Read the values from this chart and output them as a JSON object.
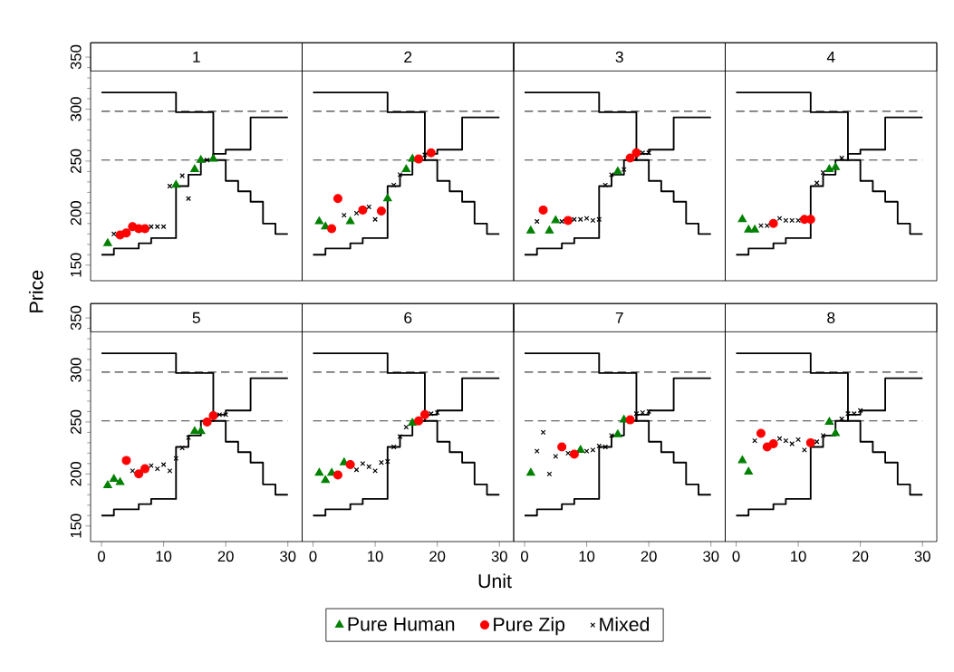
{
  "chart_data": [
    {
      "type": "scatter",
      "title": "1",
      "ylabel": "Price",
      "xlim": [
        -1.75,
        32.3
      ],
      "ylim": [
        135,
        364
      ],
      "yticks": [
        150,
        200,
        250,
        300,
        350
      ],
      "tick_labels": "y",
      "ref_lines": [
        {
          "axis": "y",
          "value": 298,
          "line_style": "dashed",
          "color": "#404040"
        },
        {
          "axis": "y",
          "value": 251,
          "line_style": "dashed",
          "color": "#404040"
        }
      ],
      "series": [
        {
          "type": "step",
          "color": "#000000",
          "x": [
            0,
            2,
            6,
            8,
            12,
            14,
            16,
            18,
            20,
            24,
            30
          ],
          "values": [
            160,
            166,
            171,
            176,
            226,
            237,
            251,
            257,
            261,
            292,
            292
          ]
        },
        {
          "type": "step",
          "color": "#000000",
          "x": [
            0,
            12,
            18,
            20,
            22,
            24,
            26,
            28,
            30
          ],
          "values": [
            316,
            297,
            251,
            231,
            221,
            211,
            190,
            180,
            180
          ]
        },
        {
          "marker": "triangle",
          "color": "#008000",
          "x": [
            1,
            12,
            15,
            16,
            18
          ],
          "values": [
            171,
            227,
            242,
            251,
            252
          ]
        },
        {
          "marker": "circle",
          "color": "#ff0000",
          "x": [
            3,
            4,
            5,
            6,
            7
          ],
          "values": [
            179,
            181,
            187,
            185,
            185
          ]
        },
        {
          "marker": "cross",
          "color": "#000000",
          "x": [
            2,
            8,
            9,
            10,
            11,
            13,
            14,
            17
          ],
          "values": [
            180,
            187,
            187,
            187,
            226,
            236,
            214,
            251
          ]
        }
      ]
    },
    {
      "type": "scatter",
      "title": "2",
      "xlim": [
        -1.75,
        32.3
      ],
      "ylim": [
        135,
        364
      ],
      "tick_labels": false,
      "ref_lines": [
        {
          "axis": "y",
          "value": 298,
          "line_style": "dashed",
          "color": "#404040"
        },
        {
          "axis": "y",
          "value": 251,
          "line_style": "dashed",
          "color": "#404040"
        }
      ],
      "series": [
        {
          "type": "step",
          "color": "#000000",
          "x": [
            0,
            2,
            6,
            8,
            12,
            14,
            16,
            18,
            20,
            24,
            30
          ],
          "values": [
            160,
            166,
            171,
            176,
            226,
            237,
            251,
            257,
            261,
            292,
            292
          ]
        },
        {
          "type": "step",
          "color": "#000000",
          "x": [
            0,
            12,
            18,
            20,
            22,
            24,
            26,
            28,
            30
          ],
          "values": [
            316,
            297,
            251,
            231,
            221,
            211,
            190,
            180,
            180
          ]
        },
        {
          "marker": "triangle",
          "color": "#008000",
          "x": [
            1,
            2,
            6,
            12,
            15,
            16
          ],
          "values": [
            192,
            187,
            192,
            214,
            242,
            252
          ]
        },
        {
          "marker": "circle",
          "color": "#ff0000",
          "x": [
            3,
            4,
            8,
            11,
            17,
            19
          ],
          "values": [
            185,
            214,
            203,
            202,
            252,
            258
          ]
        },
        {
          "marker": "cross",
          "color": "#000000",
          "x": [
            5,
            7,
            9,
            10,
            13,
            14,
            18
          ],
          "values": [
            198,
            200,
            206,
            194,
            227,
            237,
            256
          ]
        }
      ]
    },
    {
      "type": "scatter",
      "title": "3",
      "xlim": [
        -1.75,
        32.3
      ],
      "ylim": [
        135,
        364
      ],
      "tick_labels": false,
      "ref_lines": [
        {
          "axis": "y",
          "value": 298,
          "line_style": "dashed",
          "color": "#404040"
        },
        {
          "axis": "y",
          "value": 251,
          "line_style": "dashed",
          "color": "#404040"
        }
      ],
      "series": [
        {
          "type": "step",
          "color": "#000000",
          "x": [
            0,
            2,
            6,
            8,
            12,
            14,
            16,
            18,
            20,
            24,
            30
          ],
          "values": [
            160,
            166,
            171,
            176,
            226,
            237,
            251,
            257,
            261,
            292,
            292
          ]
        },
        {
          "type": "step",
          "color": "#000000",
          "x": [
            0,
            12,
            18,
            20,
            22,
            24,
            26,
            28,
            30
          ],
          "values": [
            316,
            297,
            251,
            231,
            221,
            211,
            190,
            180,
            180
          ]
        },
        {
          "marker": "triangle",
          "color": "#008000",
          "x": [
            1,
            4,
            5,
            15
          ],
          "values": [
            183,
            183,
            193,
            240
          ]
        },
        {
          "marker": "circle",
          "color": "#ff0000",
          "x": [
            3,
            7,
            17,
            18
          ],
          "values": [
            203,
            193,
            253,
            258
          ]
        },
        {
          "marker": "cross",
          "color": "#000000",
          "x": [
            2,
            6,
            8,
            9,
            10,
            11,
            12,
            13,
            14,
            16,
            19,
            20
          ],
          "values": [
            192,
            192,
            194,
            194,
            195,
            193,
            194,
            227,
            237,
            242,
            258,
            258
          ]
        }
      ]
    },
    {
      "type": "scatter",
      "title": "4",
      "xlim": [
        -1.75,
        32.3
      ],
      "ylim": [
        135,
        364
      ],
      "tick_labels": false,
      "ref_lines": [
        {
          "axis": "y",
          "value": 298,
          "line_style": "dashed",
          "color": "#404040"
        },
        {
          "axis": "y",
          "value": 251,
          "line_style": "dashed",
          "color": "#404040"
        }
      ],
      "series": [
        {
          "type": "step",
          "color": "#000000",
          "x": [
            0,
            2,
            6,
            8,
            12,
            14,
            16,
            18,
            20,
            24,
            30
          ],
          "values": [
            160,
            166,
            171,
            176,
            226,
            237,
            251,
            257,
            261,
            292,
            292
          ]
        },
        {
          "type": "step",
          "color": "#000000",
          "x": [
            0,
            12,
            18,
            20,
            22,
            24,
            26,
            28,
            30
          ],
          "values": [
            316,
            297,
            251,
            231,
            221,
            211,
            190,
            180,
            180
          ]
        },
        {
          "marker": "triangle",
          "color": "#008000",
          "x": [
            1,
            2,
            3,
            15,
            16
          ],
          "values": [
            194,
            184,
            184,
            242,
            244
          ]
        },
        {
          "marker": "circle",
          "color": "#ff0000",
          "x": [
            6,
            11,
            12
          ],
          "values": [
            190,
            194,
            194
          ]
        },
        {
          "marker": "cross",
          "color": "#000000",
          "x": [
            4,
            5,
            7,
            8,
            9,
            10,
            13,
            14,
            17
          ],
          "values": [
            188,
            188,
            195,
            193,
            193,
            193,
            229,
            239,
            253
          ]
        }
      ]
    },
    {
      "type": "scatter",
      "title": "5",
      "xlim": [
        -1.75,
        32.3
      ],
      "ylim": [
        135,
        364
      ],
      "xticks": [
        0,
        10,
        20,
        30
      ],
      "yticks": [
        150,
        200,
        250,
        300,
        350
      ],
      "ref_lines": [
        {
          "axis": "y",
          "value": 298,
          "line_style": "dashed",
          "color": "#404040"
        },
        {
          "axis": "y",
          "value": 251,
          "line_style": "dashed",
          "color": "#404040"
        }
      ],
      "series": [
        {
          "type": "step",
          "color": "#000000",
          "x": [
            0,
            2,
            6,
            8,
            12,
            14,
            16,
            18,
            20,
            24,
            30
          ],
          "values": [
            160,
            166,
            171,
            176,
            226,
            237,
            251,
            257,
            261,
            292,
            292
          ]
        },
        {
          "type": "step",
          "color": "#000000",
          "x": [
            0,
            12,
            18,
            20,
            22,
            24,
            26,
            28,
            30
          ],
          "values": [
            316,
            297,
            251,
            231,
            221,
            211,
            190,
            180,
            180
          ]
        },
        {
          "marker": "triangle",
          "color": "#008000",
          "x": [
            1,
            2,
            3,
            15,
            16
          ],
          "values": [
            189,
            195,
            192,
            241,
            241
          ]
        },
        {
          "marker": "circle",
          "color": "#ff0000",
          "x": [
            4,
            6,
            7,
            17,
            18
          ],
          "values": [
            213,
            200,
            205,
            250,
            256
          ]
        },
        {
          "marker": "cross",
          "color": "#000000",
          "x": [
            5,
            8,
            9,
            10,
            11,
            12,
            13,
            14,
            19,
            20
          ],
          "values": [
            203,
            208,
            205,
            209,
            203,
            215,
            225,
            235,
            257,
            257
          ]
        }
      ]
    },
    {
      "type": "scatter",
      "title": "6",
      "xlabel": "Unit",
      "legend": "bottom",
      "xlim": [
        -1.75,
        32.3
      ],
      "ylim": [
        135,
        364
      ],
      "xticks": [
        0,
        10,
        20,
        30
      ],
      "tick_labels": "x",
      "ref_lines": [
        {
          "axis": "y",
          "value": 298,
          "line_style": "dashed",
          "color": "#404040"
        },
        {
          "axis": "y",
          "value": 251,
          "line_style": "dashed",
          "color": "#404040"
        }
      ],
      "series": [
        {
          "type": "step",
          "color": "#000000",
          "x": [
            0,
            2,
            6,
            8,
            12,
            14,
            16,
            18,
            20,
            24,
            30
          ],
          "values": [
            160,
            166,
            171,
            176,
            226,
            237,
            251,
            257,
            261,
            292,
            292
          ]
        },
        {
          "type": "step",
          "color": "#000000",
          "x": [
            0,
            12,
            18,
            20,
            22,
            24,
            26,
            28,
            30
          ],
          "values": [
            316,
            297,
            251,
            231,
            221,
            211,
            190,
            180,
            180
          ]
        },
        {
          "name": "Pure Human",
          "marker": "triangle",
          "color": "#008000",
          "x": [
            1,
            2,
            3,
            5,
            16
          ],
          "values": [
            201,
            194,
            201,
            211,
            249
          ]
        },
        {
          "name": "Pure Zip",
          "marker": "circle",
          "color": "#ff0000",
          "x": [
            4,
            6,
            17,
            18
          ],
          "values": [
            199,
            209,
            251,
            257
          ]
        },
        {
          "name": "Mixed",
          "marker": "cross",
          "color": "#000000",
          "x": [
            7,
            8,
            9,
            10,
            11,
            12,
            13,
            14,
            15,
            19,
            20
          ],
          "values": [
            204,
            210,
            207,
            203,
            211,
            212,
            226,
            236,
            245,
            258,
            259
          ]
        }
      ]
    },
    {
      "type": "scatter",
      "title": "7",
      "xlim": [
        -1.75,
        32.3
      ],
      "ylim": [
        135,
        364
      ],
      "xticks": [
        0,
        10,
        20,
        30
      ],
      "tick_labels": "x",
      "ref_lines": [
        {
          "axis": "y",
          "value": 298,
          "line_style": "dashed",
          "color": "#404040"
        },
        {
          "axis": "y",
          "value": 251,
          "line_style": "dashed",
          "color": "#404040"
        }
      ],
      "series": [
        {
          "type": "step",
          "color": "#000000",
          "x": [
            0,
            2,
            6,
            8,
            12,
            14,
            16,
            18,
            20,
            24,
            30
          ],
          "values": [
            160,
            166,
            171,
            176,
            226,
            237,
            251,
            257,
            261,
            292,
            292
          ]
        },
        {
          "type": "step",
          "color": "#000000",
          "x": [
            0,
            12,
            18,
            20,
            22,
            24,
            26,
            28,
            30
          ],
          "values": [
            316,
            297,
            251,
            231,
            221,
            211,
            190,
            180,
            180
          ]
        },
        {
          "marker": "triangle",
          "color": "#008000",
          "x": [
            1,
            9,
            15,
            16
          ],
          "values": [
            201,
            223,
            238,
            252
          ]
        },
        {
          "marker": "circle",
          "color": "#ff0000",
          "x": [
            6,
            8,
            17
          ],
          "values": [
            226,
            219,
            252
          ]
        },
        {
          "marker": "cross",
          "color": "#000000",
          "x": [
            2,
            3,
            4,
            5,
            7,
            10,
            11,
            12,
            13,
            14,
            18,
            19,
            20
          ],
          "values": [
            222,
            240,
            200,
            217,
            220,
            222,
            223,
            227,
            226,
            237,
            258,
            259,
            260
          ]
        }
      ]
    },
    {
      "type": "scatter",
      "title": "8",
      "xlim": [
        -1.75,
        32.3
      ],
      "ylim": [
        135,
        364
      ],
      "xticks": [
        0,
        10,
        20,
        30
      ],
      "tick_labels": "x",
      "ref_lines": [
        {
          "axis": "y",
          "value": 298,
          "line_style": "dashed",
          "color": "#404040"
        },
        {
          "axis": "y",
          "value": 251,
          "line_style": "dashed",
          "color": "#404040"
        }
      ],
      "series": [
        {
          "type": "step",
          "color": "#000000",
          "x": [
            0,
            2,
            6,
            8,
            12,
            14,
            16,
            18,
            20,
            24,
            30
          ],
          "values": [
            160,
            166,
            171,
            176,
            226,
            237,
            251,
            257,
            261,
            292,
            292
          ]
        },
        {
          "type": "step",
          "color": "#000000",
          "x": [
            0,
            12,
            18,
            20,
            22,
            24,
            26,
            28,
            30
          ],
          "values": [
            316,
            297,
            251,
            231,
            221,
            211,
            190,
            180,
            180
          ]
        },
        {
          "marker": "triangle",
          "color": "#008000",
          "x": [
            1,
            2,
            15,
            16
          ],
          "values": [
            213,
            202,
            250,
            239
          ]
        },
        {
          "marker": "circle",
          "color": "#ff0000",
          "x": [
            4,
            5,
            6,
            12
          ],
          "values": [
            239,
            226,
            229,
            230
          ]
        },
        {
          "marker": "cross",
          "color": "#000000",
          "x": [
            3,
            7,
            8,
            9,
            10,
            11,
            13,
            14,
            17,
            18,
            19,
            20
          ],
          "values": [
            232,
            234,
            232,
            229,
            233,
            223,
            231,
            237,
            253,
            258,
            258,
            261
          ]
        }
      ]
    }
  ]
}
